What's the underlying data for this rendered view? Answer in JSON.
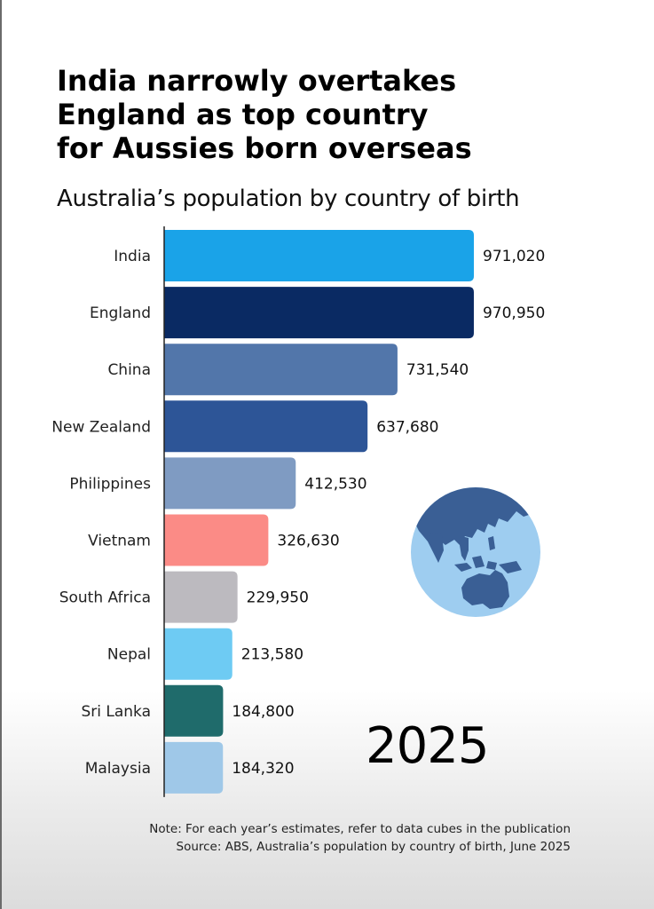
{
  "title_lines": [
    "India narrowly overtakes",
    "England as top country",
    "for Aussies born overseas"
  ],
  "subtitle": "Australia’s population by country of birth",
  "year": "2025",
  "globe_icon": "globe-asia-australia-icon",
  "note": "Note: For each year’s estimates, refer to data cubes in the publication",
  "source": "Source: ABS, Australia’s population by country of birth, June 2025",
  "chart_data": {
    "type": "bar",
    "orientation": "horizontal",
    "title": "India narrowly overtakes England as top country for Aussies born overseas",
    "subtitle": "Australia’s population by country of birth",
    "categories": [
      "India",
      "England",
      "China",
      "New Zealand",
      "Philippines",
      "Vietnam",
      "South Africa",
      "Nepal",
      "Sri Lanka",
      "Malaysia"
    ],
    "values": [
      971020,
      970950,
      731540,
      637680,
      412530,
      326630,
      229950,
      213580,
      184800,
      184320
    ],
    "value_labels": [
      "971,020",
      "970,950",
      "731,540",
      "637,680",
      "412,530",
      "326,630",
      "229,950",
      "213,580",
      "184,800",
      "184,320"
    ],
    "colors": [
      "#1aa3e8",
      "#0a2a63",
      "#5276aa",
      "#2d5597",
      "#7f9bc2",
      "#fb8b86",
      "#bcbabf",
      "#6ecbf3",
      "#1f6b6b",
      "#9fc8e8"
    ],
    "xlim": [
      0,
      971020
    ],
    "grid": false,
    "legend": "none"
  }
}
